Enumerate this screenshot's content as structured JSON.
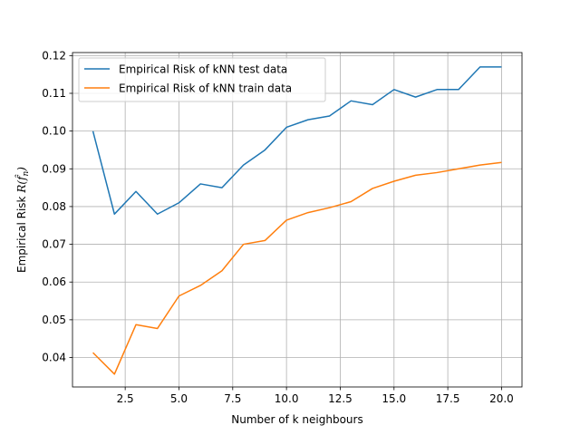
{
  "chart_data": {
    "type": "line",
    "xlabel": "Number of k neighbours",
    "ylabel": "Empirical Risk",
    "xlim": [
      0.05,
      20.95
    ],
    "ylim": [
      0.0322,
      0.1208
    ],
    "xticks": [
      2.5,
      5.0,
      7.5,
      10.0,
      12.5,
      15.0,
      17.5,
      20.0
    ],
    "xtick_labels": [
      "2.5",
      "5.0",
      "7.5",
      "10.0",
      "12.5",
      "15.0",
      "17.5",
      "20.0"
    ],
    "yticks": [
      0.04,
      0.05,
      0.06,
      0.07,
      0.08,
      0.09,
      0.1,
      0.11,
      0.12
    ],
    "ytick_labels": [
      "0.04",
      "0.05",
      "0.06",
      "0.07",
      "0.08",
      "0.09",
      "0.10",
      "0.11",
      "0.12"
    ],
    "grid": true,
    "legend_position": "top-left",
    "x": [
      1,
      2,
      3,
      4,
      5,
      6,
      7,
      8,
      9,
      10,
      11,
      12,
      13,
      14,
      15,
      16,
      17,
      18,
      19,
      20
    ],
    "series": [
      {
        "name": "Empirical Risk of kNN test data",
        "color": "#1f77b4",
        "values": [
          0.1,
          0.078,
          0.084,
          0.078,
          0.081,
          0.086,
          0.085,
          0.091,
          0.095,
          0.101,
          0.103,
          0.104,
          0.108,
          0.107,
          0.111,
          0.109,
          0.111,
          0.111,
          0.117,
          0.117
        ]
      },
      {
        "name": "Empirical Risk of kNN train data",
        "color": "#ff7f0e",
        "values": [
          0.0413,
          0.0356,
          0.0487,
          0.0477,
          0.0563,
          0.0591,
          0.063,
          0.07,
          0.071,
          0.0764,
          0.0784,
          0.0797,
          0.0813,
          0.0848,
          0.0867,
          0.0883,
          0.089,
          0.09,
          0.091,
          0.0917
        ]
      }
    ]
  }
}
